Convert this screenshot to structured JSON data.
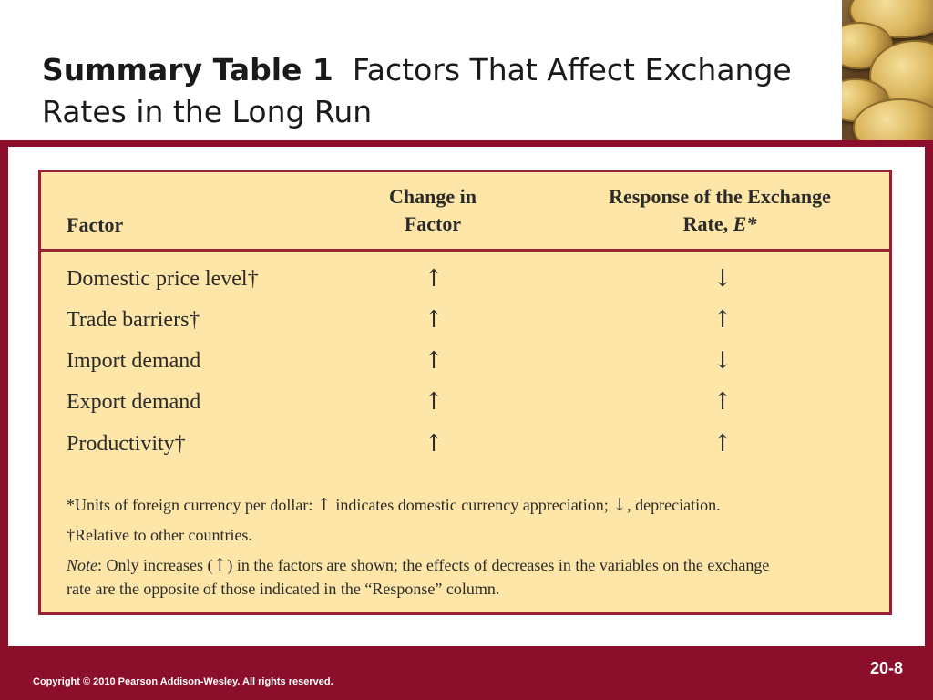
{
  "slide": {
    "title_bold": "Summary Table 1",
    "title_rest": "Factors That Affect Exchange Rates in the Long Run"
  },
  "table": {
    "headers": {
      "factor": "Factor",
      "change_line1": "Change in",
      "change_line2": "Factor",
      "response_line1": "Response of the Exchange",
      "response_line2_prefix": "Rate, ",
      "response_line2_italic": "E*"
    },
    "rows": [
      {
        "factor": "Domestic price level†",
        "change": "↑",
        "response": "↓"
      },
      {
        "factor": "Trade barriers†",
        "change": "↑",
        "response": "↑"
      },
      {
        "factor": "Import demand",
        "change": "↑",
        "response": "↓"
      },
      {
        "factor": "Export demand",
        "change": "↑",
        "response": "↑"
      },
      {
        "factor": "Productivity†",
        "change": "↑",
        "response": "↑"
      }
    ],
    "notes": {
      "note1_a": "*Units of foreign currency per dollar: ",
      "note1_up": "↑",
      "note1_b": " indicates domestic currency appreciation; ",
      "note1_down": "↓",
      "note1_c": ", depreciation.",
      "note2": "†Relative to other countries.",
      "note3_label": "Note",
      "note3_a": ": Only increases (",
      "note3_up": "↑",
      "note3_b": ") in the factors are shown; the effects of decreases in the variables on the exchange",
      "note3_c": "rate are the opposite of those indicated in the “Response” column."
    }
  },
  "footer": {
    "copyright": "Copyright © 2010 Pearson Addison-Wesley. All rights reserved.",
    "page_number": "20-8"
  },
  "colors": {
    "frame": "#8b0e2b",
    "panel_fill": "#fde6a8",
    "panel_border": "#9b1f35"
  },
  "icons": {
    "header_image": "coin-stack-icon"
  }
}
